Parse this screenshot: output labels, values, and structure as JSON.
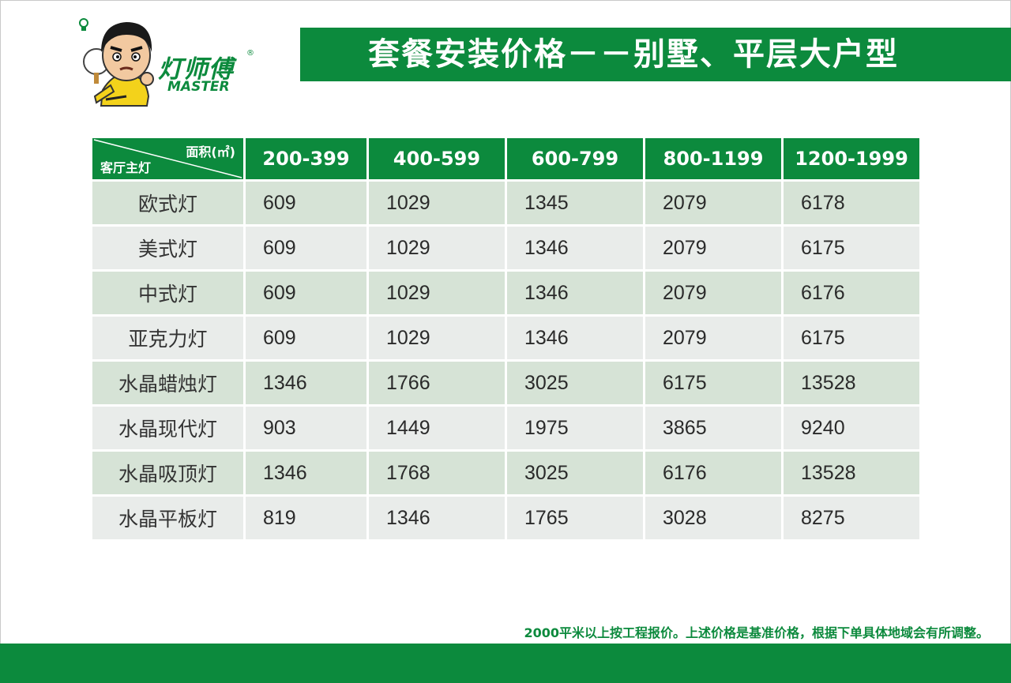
{
  "brand": {
    "name_cn": "灯师傅",
    "name_en": "MASTER",
    "registered": "®",
    "colors": {
      "green": "#0c8a3d",
      "yellow": "#f3d21b"
    }
  },
  "title": "套餐安装价格－－别墅、平层大户型",
  "table": {
    "corner_top": "面积(㎡)",
    "corner_bottom": "客厅主灯",
    "columns": [
      "200-399",
      "400-599",
      "600-799",
      "800-1199",
      "1200-1999"
    ],
    "rows": [
      {
        "name": "欧式灯",
        "values": [
          "609",
          "1029",
          "1345",
          "2079",
          "6178"
        ]
      },
      {
        "name": "美式灯",
        "values": [
          "609",
          "1029",
          "1346",
          "2079",
          "6175"
        ]
      },
      {
        "name": "中式灯",
        "values": [
          "609",
          "1029",
          "1346",
          "2079",
          "6176"
        ]
      },
      {
        "name": "亚克力灯",
        "values": [
          "609",
          "1029",
          "1346",
          "2079",
          "6175"
        ]
      },
      {
        "name": "水晶蜡烛灯",
        "values": [
          "1346",
          "1766",
          "3025",
          "6175",
          "13528"
        ]
      },
      {
        "name": "水晶现代灯",
        "values": [
          "903",
          "1449",
          "1975",
          "3865",
          "9240"
        ]
      },
      {
        "name": "水晶吸顶灯",
        "values": [
          "1346",
          "1768",
          "3025",
          "6176",
          "13528"
        ]
      },
      {
        "name": "水晶平板灯",
        "values": [
          "819",
          "1346",
          "1765",
          "3028",
          "8275"
        ]
      }
    ]
  },
  "footer_note": "2000平米以上按工程报价。上述价格是基准价格，根据下单具体地域会有所调整。"
}
